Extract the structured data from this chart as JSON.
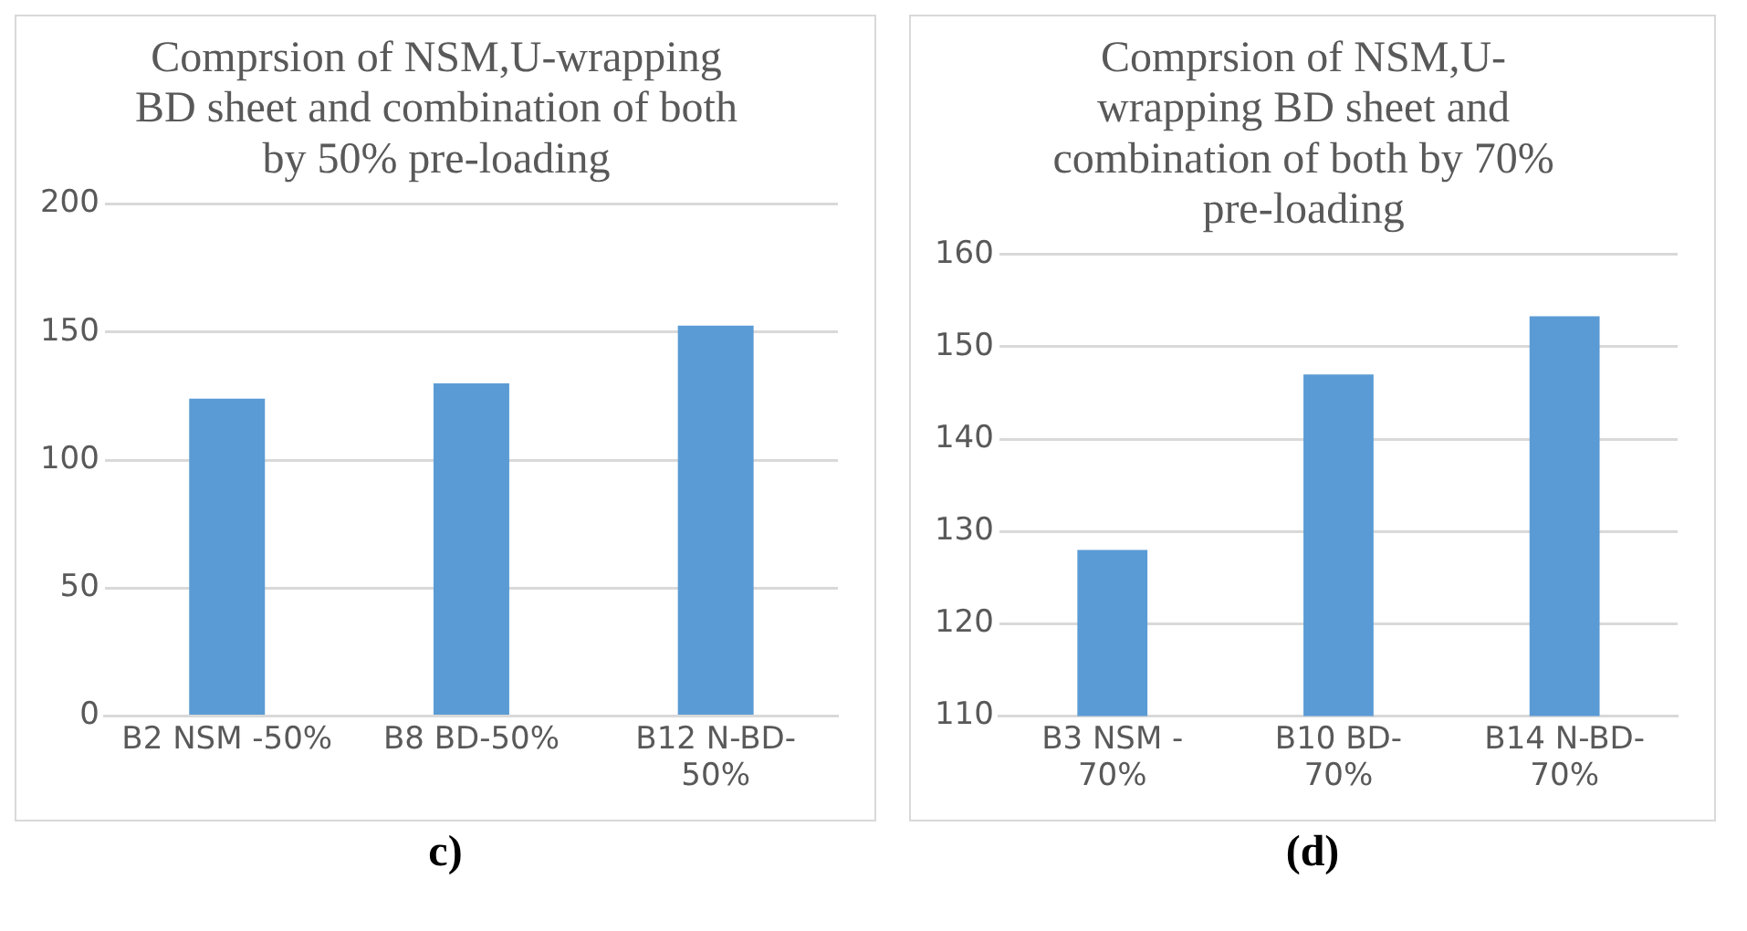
{
  "chart_data": [
    {
      "type": "bar",
      "title": "Comprsion of NSM,U-wrapping BD sheet and combination of both by 50% pre-loading",
      "categories": [
        "B2 NSM -50%",
        "B8 BD-50%",
        "B12 N-BD-50%"
      ],
      "values": [
        124,
        130,
        152.5
      ],
      "color": "#5b9bd5",
      "ylim": [
        0,
        200
      ],
      "yticks": [
        0,
        50,
        100,
        150,
        200
      ],
      "grid": "y",
      "annotations": [
        "c)"
      ]
    },
    {
      "type": "bar",
      "title": "Comprsion of NSM,U-wrapping BD sheet and combination of both by 70% pre-loading",
      "categories": [
        "B3 NSM -70%",
        "B10 BD-70%",
        "B14 N-BD-70%"
      ],
      "values": [
        128,
        147,
        153.3
      ],
      "color": "#5b9bd5",
      "ylim": [
        110,
        160
      ],
      "yticks": [
        110,
        120,
        130,
        140,
        150,
        160
      ],
      "grid": "y",
      "annotations": [
        "(d)"
      ]
    }
  ]
}
